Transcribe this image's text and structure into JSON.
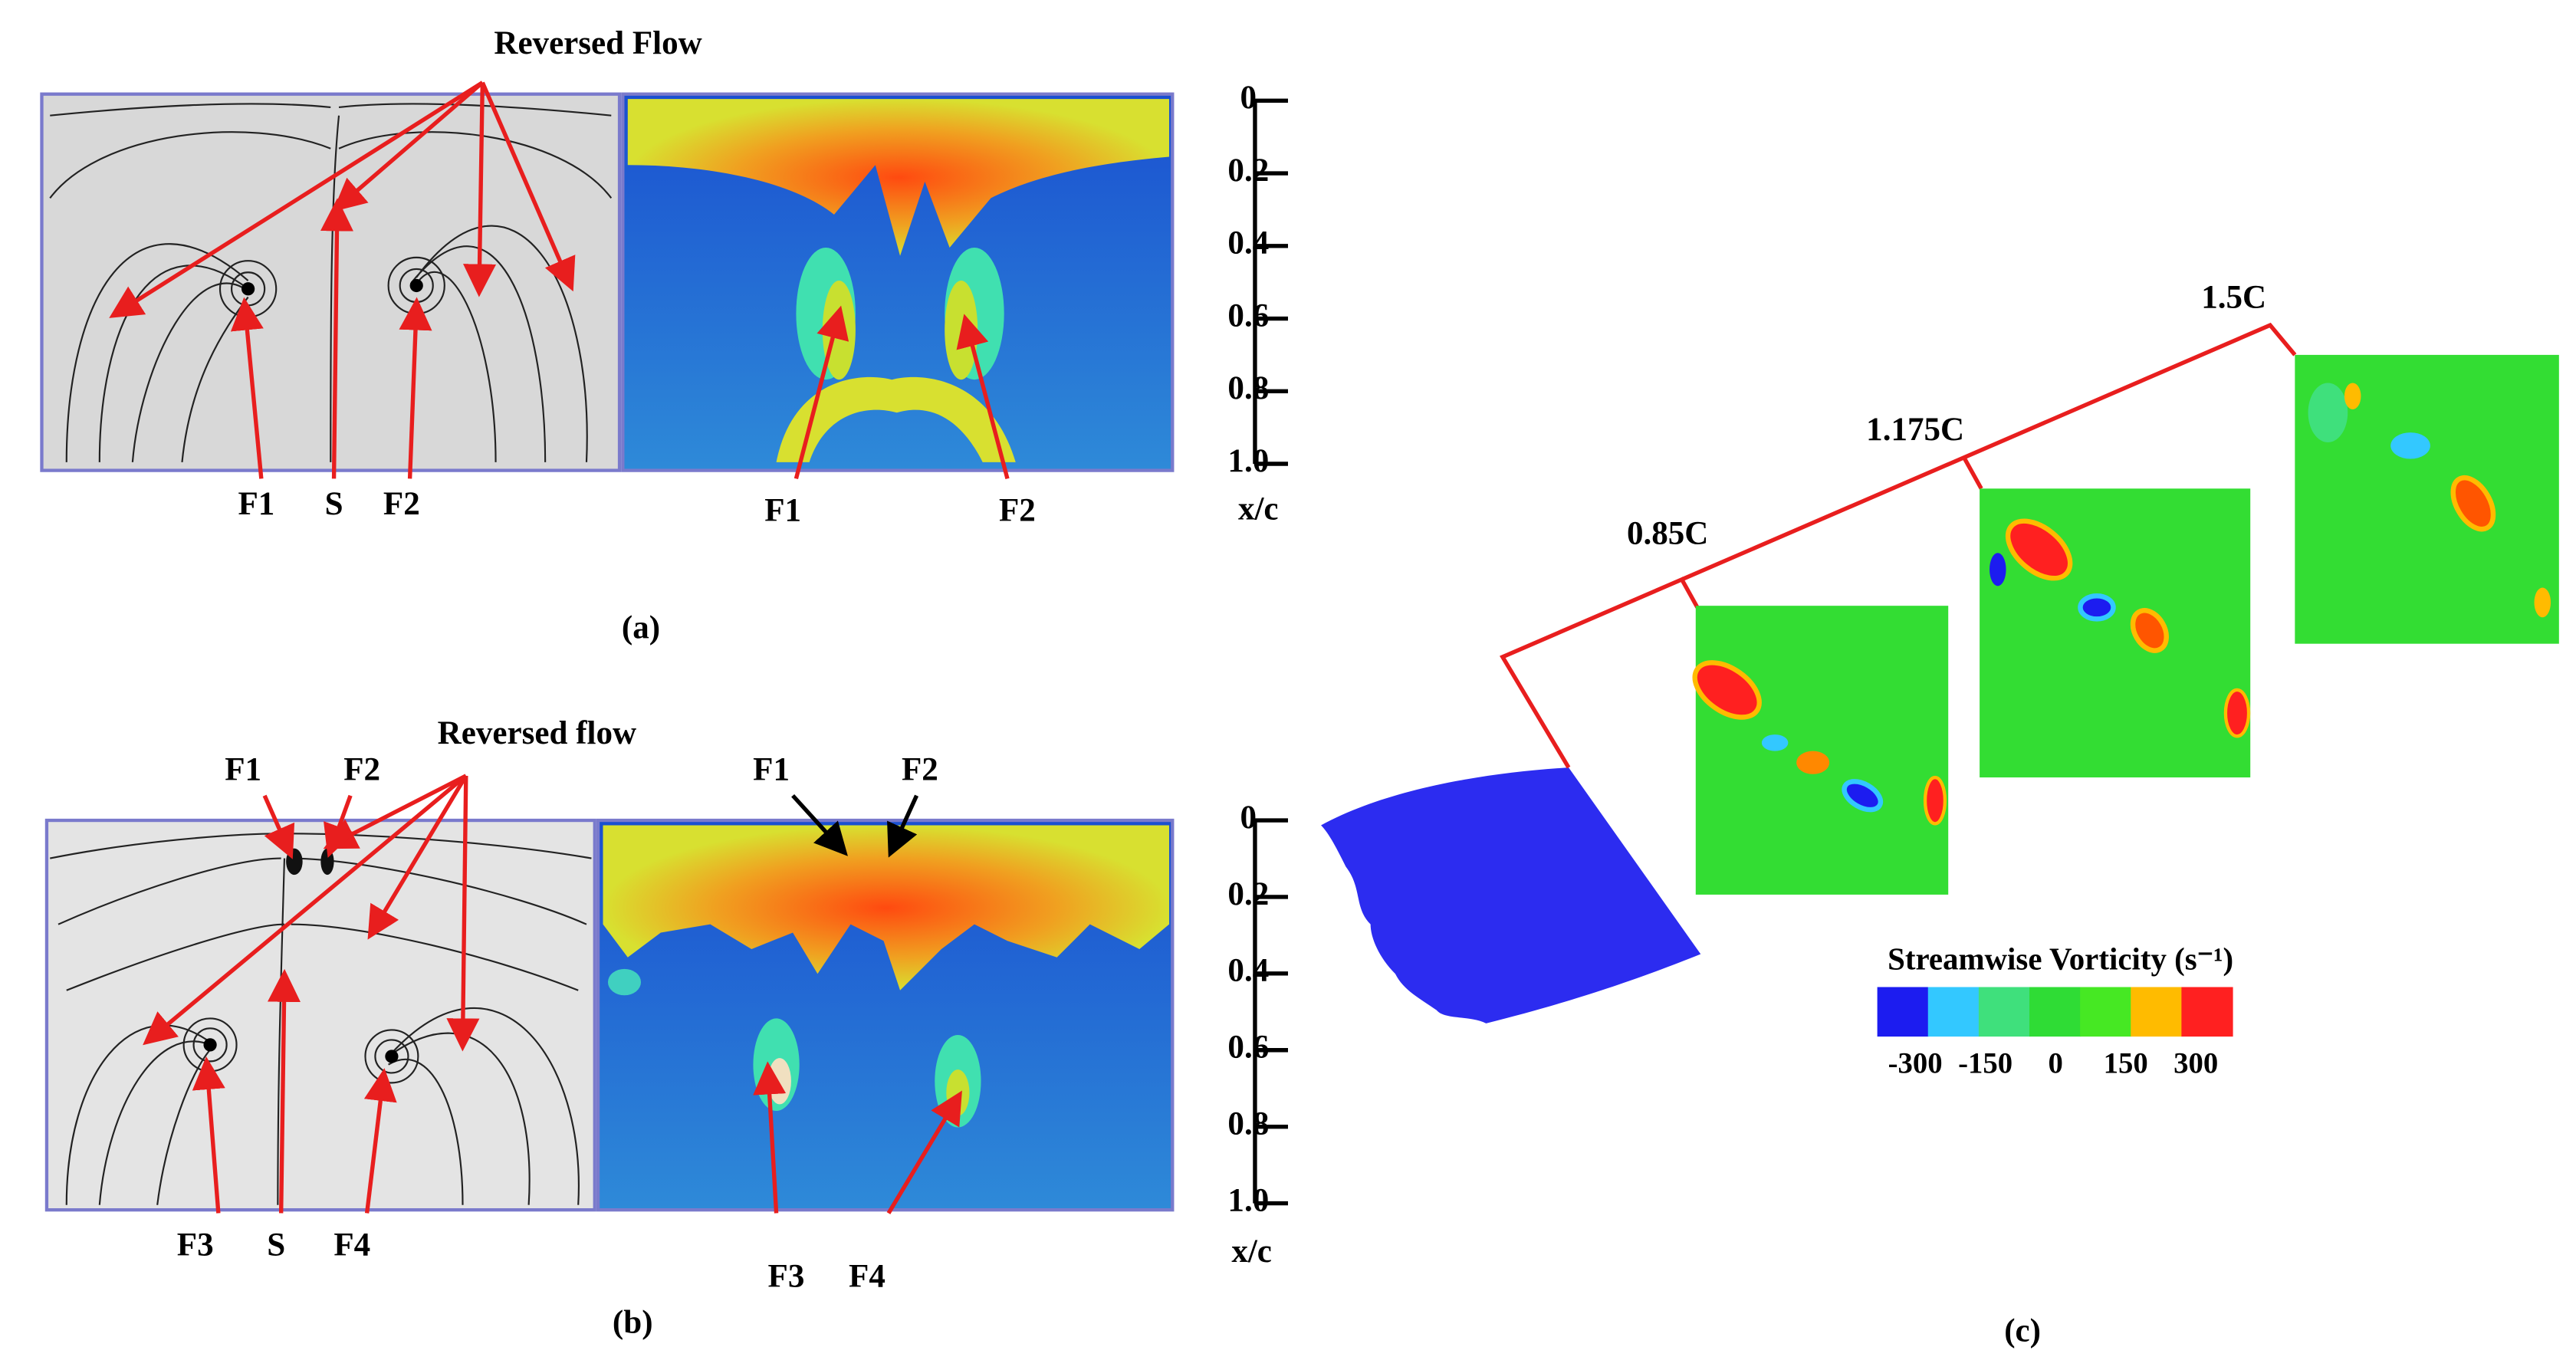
{
  "panel_a": {
    "annotation": "Reversed Flow",
    "streamline_labels": [
      "F1",
      "S",
      "F2"
    ],
    "isosurface_labels": [
      "F1",
      "F2"
    ],
    "axis_ticks": [
      "0",
      "0.2",
      "0.4",
      "0.6",
      "0.8",
      "1.0"
    ],
    "axis_label": "x/c",
    "caption": "(a)"
  },
  "panel_b": {
    "annotation": "Reversed flow",
    "streamline_top_labels": [
      "F1",
      "F2"
    ],
    "streamline_labels": [
      "F3",
      "S",
      "F4"
    ],
    "isosurface_top_labels": [
      "F1",
      "F2"
    ],
    "isosurface_labels": [
      "F3",
      "F4"
    ],
    "axis_ticks": [
      "0",
      "0.2",
      "0.4",
      "0.6",
      "0.8",
      "1.0"
    ],
    "axis_label": "x/c",
    "caption": "(b)"
  },
  "panel_c": {
    "stations": [
      "0.85C",
      "1.175C",
      "1.5C"
    ],
    "colorbar": {
      "title": "Streamwise Vorticity (s⁻¹)",
      "labels": [
        "-300",
        "-150",
        "0",
        "150",
        "300"
      ],
      "colors": [
        "#1c1cf0",
        "#33c8ff",
        "#3fe07c",
        "#2fdc35",
        "#46e823",
        "#ffbb00",
        "#ff2020"
      ]
    },
    "caption": "(c)"
  }
}
